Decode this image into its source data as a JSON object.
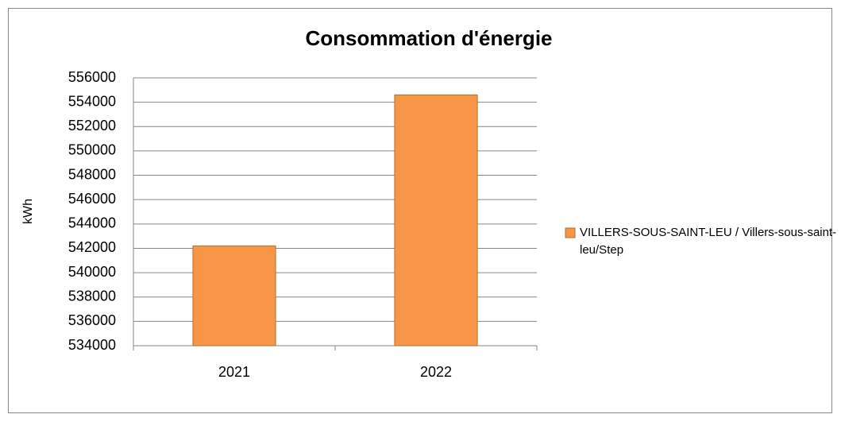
{
  "chart_data": {
    "type": "bar",
    "title": "Consommation d'énergie",
    "y_label": "kWh",
    "categories": [
      "2021",
      "2022"
    ],
    "series": [
      {
        "name": "VILLERS-SOUS-SAINT-LEU / Villers-sous-saint-leu/Step",
        "color": "#f79646",
        "values": [
          542200,
          554600
        ]
      }
    ],
    "ylim": [
      534000,
      556000
    ],
    "yticks": [
      534000,
      536000,
      538000,
      540000,
      542000,
      544000,
      546000,
      548000,
      550000,
      552000,
      554000,
      556000
    ],
    "grid": true,
    "legend": "right"
  }
}
